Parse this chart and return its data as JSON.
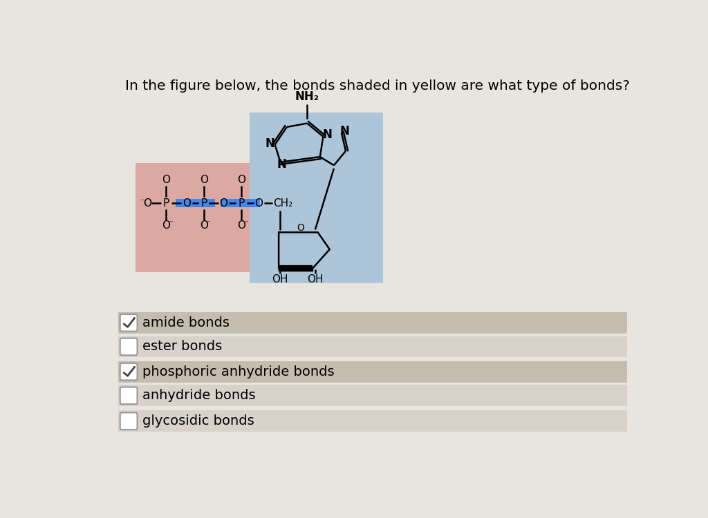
{
  "title": "In the figure below, the bonds shaded in yellow are what type of bonds?",
  "title_fontsize": 14.5,
  "bg_color": "#d0cac2",
  "molecule_pink_bg": "#dba8a2",
  "molecule_blue_bg": "#adc5d8",
  "highlight_blue": "#4488ee",
  "options": [
    {
      "text": "amide bonds",
      "checked": true,
      "row_bg": "#c5bdb0"
    },
    {
      "text": "ester bonds",
      "checked": false,
      "row_bg": "#d8d2ca"
    },
    {
      "text": "phosphoric anhydride bonds",
      "checked": true,
      "row_bg": "#c5bdb0"
    },
    {
      "text": "anhydride bonds",
      "checked": false,
      "row_bg": "#d8d2ca"
    },
    {
      "text": "glycosidic bonds",
      "checked": false,
      "row_bg": "#d8d2ca"
    }
  ],
  "page_bg": "#e8e4de"
}
